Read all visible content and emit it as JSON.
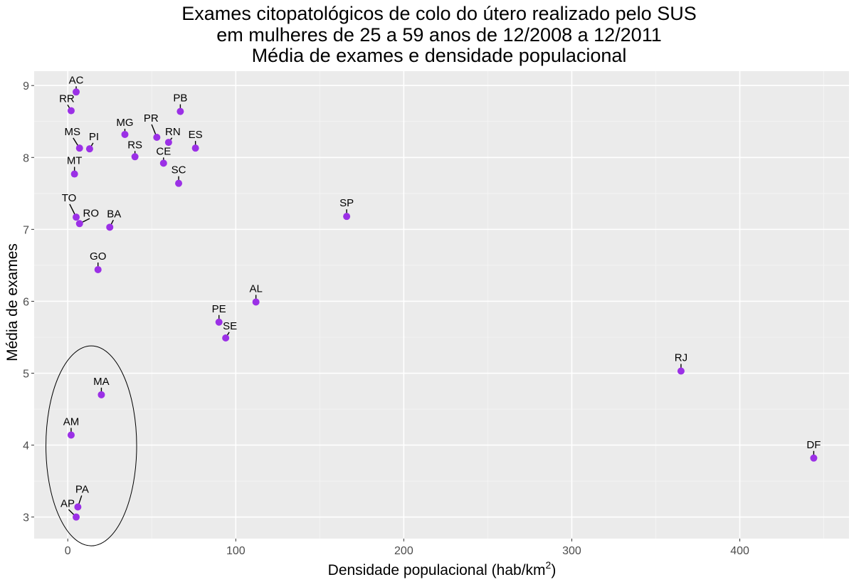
{
  "chart_data": {
    "type": "scatter",
    "title": [
      "Exames citopatológicos de colo do útero realizado pelo SUS",
      "em mulheres de 25 a 59 anos de 12/2008 a 12/2011",
      "Média de exames e densidade populacional"
    ],
    "xlabel": "Densidade populacional (hab/km",
    "xlabel_superscript": "2",
    "xlabel_suffix": ")",
    "ylabel": "Média de exames",
    "xlim": [
      -20,
      465
    ],
    "ylim": [
      2.7,
      9.2
    ],
    "x_ticks": [
      0,
      100,
      200,
      300,
      400
    ],
    "y_ticks": [
      3,
      4,
      5,
      6,
      7,
      8,
      9
    ],
    "grid": true,
    "point_color": "#9b30e6",
    "panel_background": "#ebebeb",
    "points": [
      {
        "label": "AC",
        "x": 5,
        "y": 8.91
      },
      {
        "label": "RR",
        "x": 2,
        "y": 8.65
      },
      {
        "label": "PB",
        "x": 67,
        "y": 8.64
      },
      {
        "label": "MG",
        "x": 34,
        "y": 8.32
      },
      {
        "label": "PR",
        "x": 53,
        "y": 8.28
      },
      {
        "label": "RN",
        "x": 60,
        "y": 8.21
      },
      {
        "label": "MS",
        "x": 7,
        "y": 8.13
      },
      {
        "label": "PI",
        "x": 13,
        "y": 8.12
      },
      {
        "label": "ES",
        "x": 76,
        "y": 8.13
      },
      {
        "label": "RS",
        "x": 40,
        "y": 8.01
      },
      {
        "label": "CE",
        "x": 57,
        "y": 7.92
      },
      {
        "label": "MT",
        "x": 4,
        "y": 7.77
      },
      {
        "label": "SC",
        "x": 66,
        "y": 7.64
      },
      {
        "label": "SP",
        "x": 166,
        "y": 7.18
      },
      {
        "label": "TO",
        "x": 5,
        "y": 7.17
      },
      {
        "label": "RO",
        "x": 7,
        "y": 7.08
      },
      {
        "label": "BA",
        "x": 25,
        "y": 7.03
      },
      {
        "label": "GO",
        "x": 18,
        "y": 6.44
      },
      {
        "label": "AL",
        "x": 112,
        "y": 5.99
      },
      {
        "label": "PE",
        "x": 90,
        "y": 5.71
      },
      {
        "label": "SE",
        "x": 94,
        "y": 5.49
      },
      {
        "label": "RJ",
        "x": 365,
        "y": 5.03
      },
      {
        "label": "MA",
        "x": 20,
        "y": 4.7
      },
      {
        "label": "AM",
        "x": 2,
        "y": 4.14
      },
      {
        "label": "DF",
        "x": 444,
        "y": 3.82
      },
      {
        "label": "PA",
        "x": 6,
        "y": 3.14
      },
      {
        "label": "AP",
        "x": 5,
        "y": 3.0
      }
    ],
    "annotation": {
      "shape": "ellipse",
      "cx": 14,
      "cy": 3.99,
      "rx": 27,
      "ry": 1.39
    }
  }
}
